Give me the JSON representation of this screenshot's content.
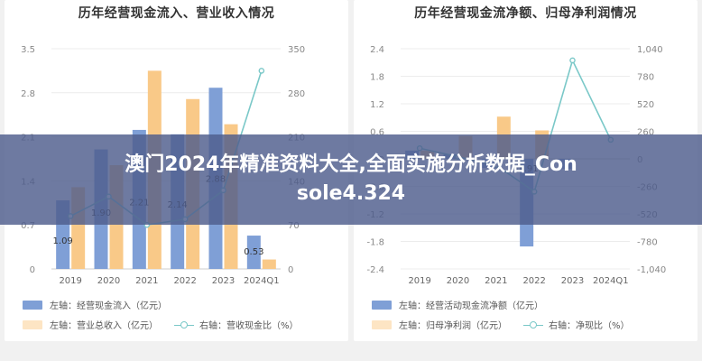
{
  "chart_data": [
    {
      "type": "bar",
      "title": "历年经营现金流入、营业收入情况",
      "categories": [
        "2019",
        "2020",
        "2021",
        "2022",
        "2023",
        "2024Q1"
      ],
      "series": [
        {
          "name": "左轴：经营现金流入（亿元）",
          "type": "bar",
          "axis": "left",
          "color": "#7f9fd6",
          "values": [
            1.09,
            1.9,
            2.21,
            2.14,
            2.88,
            0.53
          ]
        },
        {
          "name": "左轴：营业总收入（亿元）",
          "type": "bar",
          "axis": "left",
          "color": "#f9c988",
          "values": [
            1.3,
            1.65,
            3.15,
            2.7,
            2.3,
            0.15
          ]
        },
        {
          "name": "右轴：营收现金比（%）",
          "type": "line",
          "axis": "right",
          "color": "#7ac8c8",
          "values": [
            84,
            115,
            70,
            79,
            125,
            315
          ]
        }
      ],
      "data_labels": [
        "1.09",
        "1.90",
        "2.21",
        "2.14",
        "2.88",
        "0.53"
      ],
      "yticks_left": [
        "0",
        "0.7",
        "1.4",
        "2.1",
        "2.8",
        "3.5"
      ],
      "yticks_right": [
        "0",
        "70",
        "140",
        "210",
        "280",
        "350"
      ],
      "ylim_left": [
        0,
        3.5
      ],
      "ylim_right": [
        0,
        350
      ],
      "grid": true,
      "legend": [
        [
          "左轴：经营现金流入（亿元）"
        ],
        [
          "左轴：营业总收入（亿元）",
          "右轴：营收现金比（%）"
        ]
      ]
    },
    {
      "type": "bar",
      "title": "历年经营现金流净额、归母净利润情况",
      "categories": [
        "2019",
        "2020",
        "2021",
        "2022",
        "2023",
        "2024Q1"
      ],
      "series": [
        {
          "name": "左轴：经营活动现金流净额（亿元）",
          "type": "bar",
          "axis": "left",
          "color": "#7f9fd6",
          "values": [
            0.18,
            0.1,
            -0.2,
            -1.91,
            -0.22,
            0
          ]
        },
        {
          "name": "左轴：归母净利润（亿元）",
          "type": "bar",
          "axis": "left",
          "color": "#f9c988",
          "values": [
            0.18,
            0.5,
            0.92,
            0.62,
            0,
            0
          ]
        },
        {
          "name": "右轴：净现比（%）",
          "type": "line",
          "axis": "right",
          "color": "#7ac8c8",
          "values": [
            100,
            20,
            -60,
            -310,
            930,
            180
          ]
        }
      ],
      "data_labels": [
        "",
        "",
        "",
        "-1.91",
        "",
        ""
      ],
      "yticks_left": [
        "-2.4",
        "-1.8",
        "-1.2",
        "-0.6",
        "0",
        "0.6",
        "1.2",
        "1.8",
        "2.4"
      ],
      "yticks_right": [
        "-1,040",
        "-780",
        "-520",
        "-260",
        "0",
        "260",
        "520",
        "780",
        "1,040"
      ],
      "ylim_left": [
        -2.4,
        2.4
      ],
      "ylim_right": [
        -1040,
        1040
      ],
      "grid": true,
      "legend": [
        [
          "左轴：经营活动现金流净额（亿元）"
        ],
        [
          "左轴：归母净利润（亿元）",
          "右轴：净现比（%）"
        ]
      ]
    }
  ],
  "banner": {
    "line1": "澳门2024年精准资料大全,全面实施分析数据_Con",
    "line2": "sole4.324"
  }
}
